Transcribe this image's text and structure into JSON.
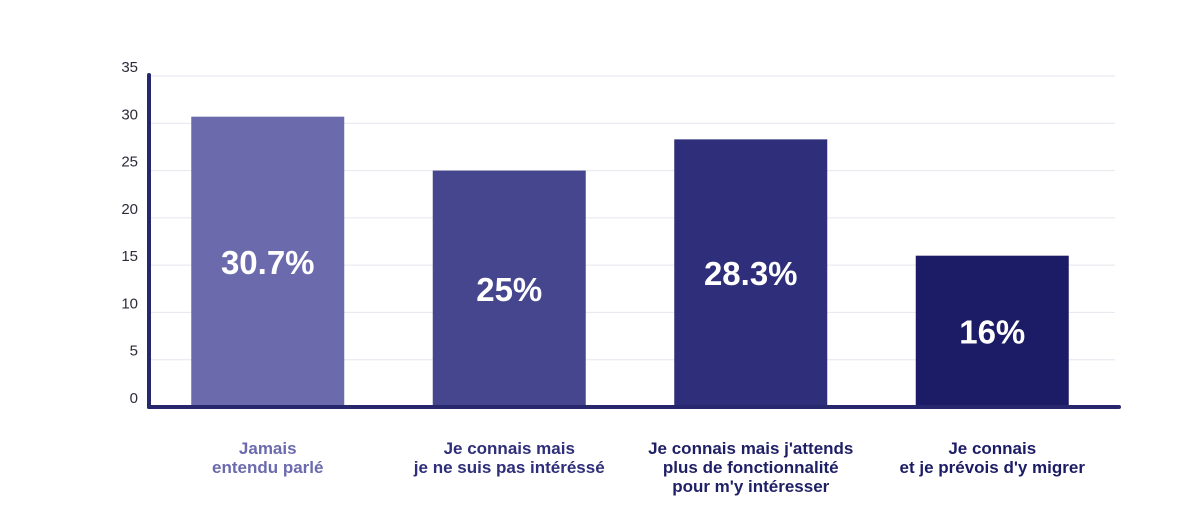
{
  "chart_data": {
    "type": "bar",
    "categories": [
      [
        "Jamais",
        "entendu parlé"
      ],
      [
        "Je connais mais",
        "je ne suis pas intéréssé"
      ],
      [
        "Je connais mais j'attends",
        "plus de fonctionnalité",
        "pour m'y intéresser"
      ],
      [
        "Je connais",
        "et je prévois d'y migrer"
      ]
    ],
    "values": [
      30.7,
      25,
      28.3,
      16
    ],
    "value_labels": [
      "30.7%",
      "25%",
      "28.3%",
      "16%"
    ],
    "bar_colors": [
      "#6b6aad",
      "#46468f",
      "#2e2e7a",
      "#1c1c66"
    ],
    "label_colors": [
      "#6b6aad",
      "#2e2e7a",
      "#1f1f66",
      "#1c1c66"
    ],
    "axis_color": "#27276d",
    "grid": true,
    "ylim": [
      0,
      35
    ],
    "yticks": [
      0,
      5,
      10,
      15,
      20,
      25,
      30,
      35
    ],
    "title": "",
    "xlabel": "",
    "ylabel": ""
  }
}
